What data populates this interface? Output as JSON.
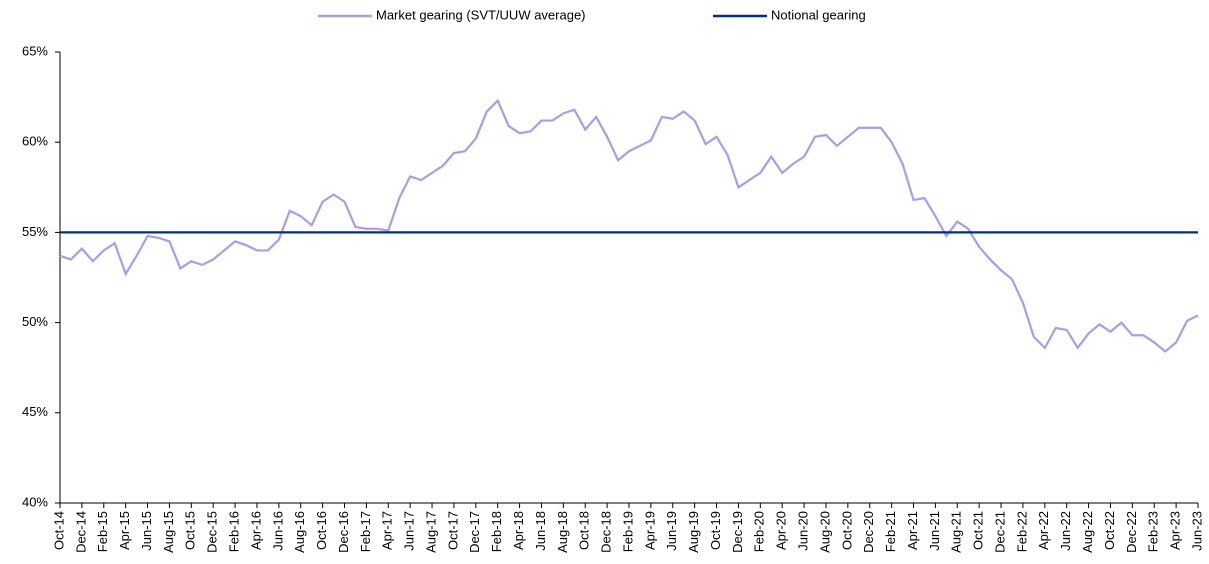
{
  "chart_data": {
    "type": "line",
    "categories": [
      "Oct-14",
      null,
      "Dec-14",
      null,
      "Feb-15",
      null,
      "Apr-15",
      null,
      "Jun-15",
      null,
      "Aug-15",
      null,
      "Oct-15",
      null,
      "Dec-15",
      null,
      "Feb-16",
      null,
      "Apr-16",
      null,
      "Jun-16",
      null,
      "Aug-16",
      null,
      "Oct-16",
      null,
      "Dec-16",
      null,
      "Feb-17",
      null,
      "Apr-17",
      null,
      "Jun-17",
      null,
      "Aug-17",
      null,
      "Oct-17",
      null,
      "Dec-17",
      null,
      "Feb-18",
      null,
      "Apr-18",
      null,
      "Jun-18",
      null,
      "Aug-18",
      null,
      "Oct-18",
      null,
      "Dec-18",
      null,
      "Feb-19",
      null,
      "Apr-19",
      null,
      "Jun-19",
      null,
      "Aug-19",
      null,
      "Oct-19",
      null,
      "Dec-19",
      null,
      "Feb-20",
      null,
      "Apr-20",
      null,
      "Jun-20",
      null,
      "Aug-20",
      null,
      "Oct-20",
      null,
      "Dec-20",
      null,
      "Feb-21",
      null,
      "Apr-21",
      null,
      "Jun-21",
      null,
      "Aug-21",
      null,
      "Oct-21",
      null,
      "Dec-21",
      null,
      "Feb-22",
      null,
      "Apr-22",
      null,
      "Jun-22",
      null,
      "Aug-22",
      null,
      "Oct-22",
      null,
      "Dec-22",
      null,
      "Feb-23",
      null,
      "Apr-23",
      null,
      "Jun-23"
    ],
    "series": [
      {
        "name": "Market gearing (SVT/UUW average)",
        "color": "#a99cf0",
        "values": [
          53.7,
          53.5,
          54.1,
          53.4,
          54.0,
          54.4,
          52.7,
          53.7,
          54.8,
          54.7,
          54.5,
          53.0,
          53.4,
          53.2,
          53.5,
          54.0,
          54.5,
          54.3,
          54.0,
          54.0,
          54.6,
          56.2,
          55.9,
          55.4,
          56.7,
          57.1,
          56.7,
          55.3,
          55.2,
          55.2,
          55.1,
          56.9,
          58.1,
          57.9,
          58.3,
          58.7,
          59.4,
          59.5,
          60.2,
          61.7,
          62.3,
          60.9,
          60.5,
          60.6,
          61.2,
          61.2,
          61.6,
          61.8,
          60.7,
          61.4,
          60.3,
          59.0,
          59.5,
          59.8,
          60.1,
          61.4,
          61.3,
          61.7,
          61.2,
          59.9,
          60.3,
          59.3,
          57.5,
          57.9,
          58.3,
          59.2,
          58.3,
          58.8,
          59.2,
          60.3,
          60.4,
          59.8,
          60.3,
          60.8,
          60.8,
          60.8,
          60.0,
          58.8,
          56.8,
          56.9,
          55.9,
          54.8,
          55.6,
          55.2,
          54.2,
          53.5,
          52.9,
          52.4,
          51.1,
          49.2,
          48.6,
          49.7,
          49.6,
          48.6,
          49.4,
          49.9,
          49.5,
          50.0,
          49.3,
          49.3,
          48.9,
          48.4,
          48.9,
          50.1,
          50.4
        ]
      },
      {
        "name": "Notional gearing",
        "color": "#002f87",
        "values": [
          55,
          55,
          55,
          55,
          55,
          55,
          55,
          55,
          55,
          55,
          55,
          55,
          55,
          55,
          55,
          55,
          55,
          55,
          55,
          55,
          55,
          55,
          55,
          55,
          55,
          55,
          55,
          55,
          55,
          55,
          55,
          55,
          55,
          55,
          55,
          55,
          55,
          55,
          55,
          55,
          55,
          55,
          55,
          55,
          55,
          55,
          55,
          55,
          55,
          55,
          55,
          55,
          55,
          55,
          55,
          55,
          55,
          55,
          55,
          55,
          55,
          55,
          55,
          55,
          55,
          55,
          55,
          55,
          55,
          55,
          55,
          55,
          55,
          55,
          55,
          55,
          55,
          55,
          55,
          55,
          55,
          55,
          55,
          55,
          55,
          55,
          55,
          55,
          55,
          55,
          55,
          55,
          55,
          55,
          55,
          55,
          55,
          55,
          55,
          55,
          55,
          55,
          55,
          55,
          55
        ]
      }
    ],
    "ylim": [
      40,
      65
    ],
    "yticks": [
      {
        "value": 40,
        "label": "40%"
      },
      {
        "value": 45,
        "label": "45%"
      },
      {
        "value": 50,
        "label": "50%"
      },
      {
        "value": 55,
        "label": "55%"
      },
      {
        "value": 60,
        "label": "60%"
      },
      {
        "value": 65,
        "label": "65%"
      }
    ],
    "legend": "top",
    "grid": false
  }
}
